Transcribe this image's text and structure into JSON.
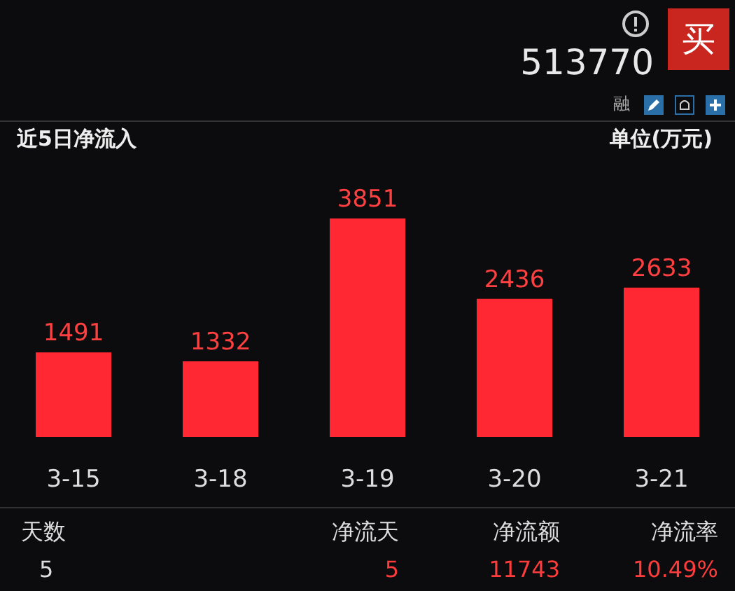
{
  "chart_data": {
    "type": "bar",
    "title": "近5日净流入",
    "ylabel": "单位(万元)",
    "categories": [
      "3-15",
      "3-18",
      "3-19",
      "3-20",
      "3-21"
    ],
    "values": [
      1491,
      1332,
      3851,
      2436,
      2633
    ],
    "color": "#ff2833",
    "data_labels": true,
    "grid": false,
    "annotations": [
      "513770",
      "买",
      "融",
      "天数",
      "净流天",
      "净流额",
      "净流率",
      "5",
      "5",
      "11743",
      "10.49%"
    ]
  }
}
